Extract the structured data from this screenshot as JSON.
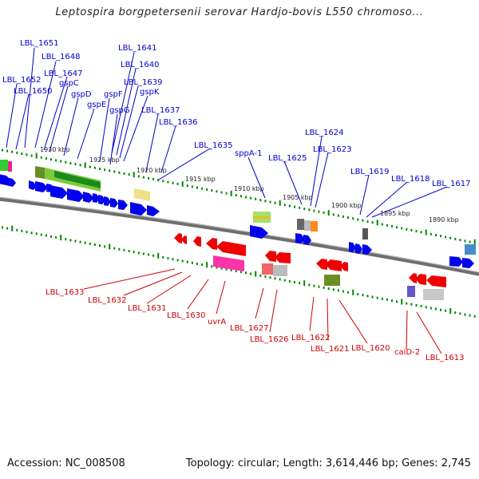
{
  "header": {
    "title": "Leptospira borgpetersenii serovar Hardjo-bovis L550 chromoso..."
  },
  "footer": {
    "accession": "Accession: NC_008508",
    "stats": "Topology: circular; Length: 3,614,446 bp; Genes: 2,745"
  },
  "colors": {
    "forward_label": "#0000cc",
    "reverse_label": "#cc0000",
    "forward_arrow": "#0000ee",
    "reverse_arrow": "#ee0000",
    "backbone": "#808080",
    "tick": "#008800"
  },
  "scale_labels": [
    "1930 kbp",
    "1925 kbp",
    "1920 kbp",
    "1915 kbp",
    "1910 kbp",
    "1905 kbp",
    "1900 kbp",
    "1895 kbp",
    "1890 kbp"
  ],
  "forward_genes": [
    "LBL_1651",
    "LBL_1648",
    "LBL_1647",
    "LBL_1652",
    "gspC",
    "LBL_1650",
    "gspD",
    "gspE",
    "LBL_1641",
    "LBL_1640",
    "LBL_1639",
    "gspF",
    "gspK",
    "gspG",
    "LBL_1637",
    "LBL_1636",
    "LBL_1635",
    "sppA-1",
    "LBL_1625",
    "LBL_1624",
    "LBL_1623",
    "LBL_1619",
    "LBL_1618",
    "LBL_1617"
  ],
  "reverse_genes": [
    "LBL_1633",
    "LBL_1632",
    "LBL_1631",
    "LBL_1630",
    "uvrA",
    "LBL_1627",
    "LBL_1626",
    "LBL_1622",
    "LBL_1621",
    "LBL_1620",
    "caiD-2",
    "LBL_1613"
  ]
}
